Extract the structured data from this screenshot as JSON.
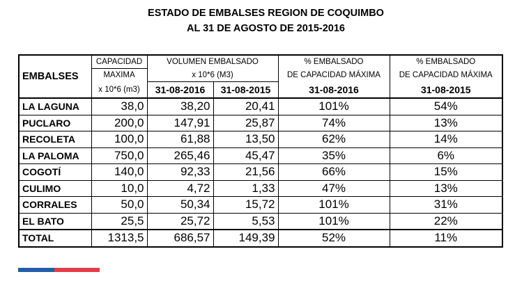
{
  "title_line1": "ESTADO DE EMBALSES  REGION DE COQUIMBO",
  "title_line2": "AL 31 DE AGOSTO DE 2015-2016",
  "header": {
    "embalses": "EMBALSES",
    "capacidad_1": "CAPACIDAD",
    "capacidad_2": "MAXIMA",
    "capacidad_3": "x 10*6 (m3)",
    "volumen_1": "VOLUMEN EMBALSADO",
    "volumen_2": "x 10*6  (M3)",
    "date_2016": "31-08-2016",
    "date_2015": "31-08-2015",
    "pct_1": "% EMBALSADO",
    "pct_2": "DE  CAPACIDAD MÁXIMA",
    "pct2016_date": "31-08-2016",
    "pct2015_date": "31-08-2015"
  },
  "rows": [
    {
      "name": "LA LAGUNA",
      "cap": "38,0",
      "v2016": "38,20",
      "v2015": "20,41",
      "p2016": "101%",
      "p2015": "54%"
    },
    {
      "name": "PUCLARO",
      "cap": "200,0",
      "v2016": "147,91",
      "v2015": "25,87",
      "p2016": "74%",
      "p2015": "13%"
    },
    {
      "name": "RECOLETA",
      "cap": "100,0",
      "v2016": "61,88",
      "v2015": "13,50",
      "p2016": "62%",
      "p2015": "14%"
    },
    {
      "name": "LA PALOMA",
      "cap": "750,0",
      "v2016": "265,46",
      "v2015": "45,47",
      "p2016": "35%",
      "p2015": "6%"
    },
    {
      "name": "COGOTÍ",
      "cap": "140,0",
      "v2016": "92,33",
      "v2015": "21,56",
      "p2016": "66%",
      "p2015": "15%"
    },
    {
      "name": "CULIMO",
      "cap": "10,0",
      "v2016": "4,72",
      "v2015": "1,33",
      "p2016": "47%",
      "p2015": "13%"
    },
    {
      "name": "CORRALES",
      "cap": "50,0",
      "v2016": "50,34",
      "v2015": "15,72",
      "p2016": "101%",
      "p2015": "31%"
    },
    {
      "name": "EL BATO",
      "cap": "25,5",
      "v2016": "25,72",
      "v2015": "5,53",
      "p2016": "101%",
      "p2015": "22%"
    },
    {
      "name": "TOTAL",
      "cap": "1313,5",
      "v2016": "686,57",
      "v2015": "149,39",
      "p2016": "52%",
      "p2015": "11%"
    }
  ],
  "colors": {
    "bar_blue": "#1f5fa8",
    "bar_red": "#e63c46"
  }
}
